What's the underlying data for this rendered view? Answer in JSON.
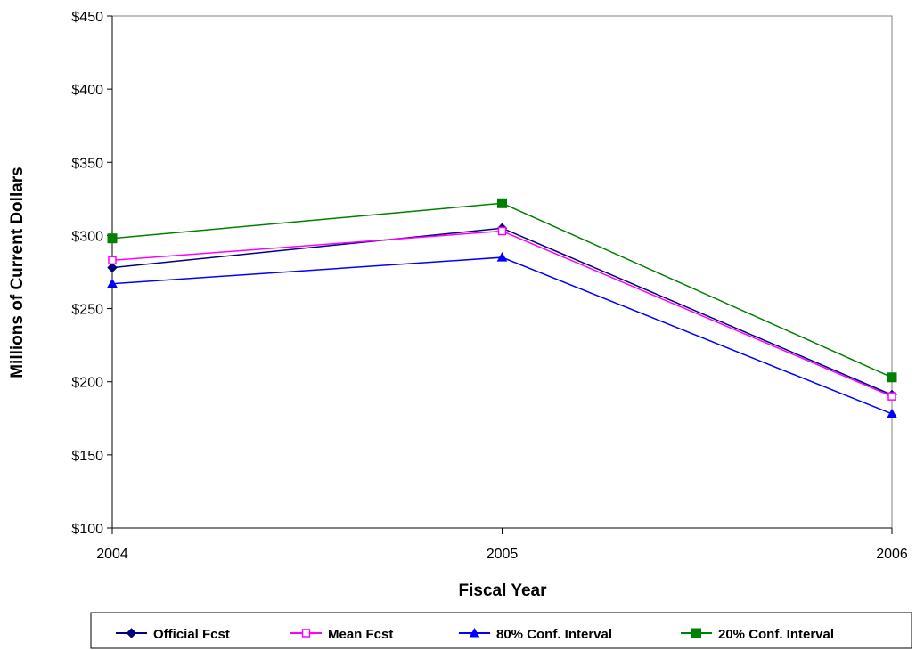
{
  "chart_data": {
    "type": "line",
    "title": "",
    "xlabel": "Fiscal Year",
    "ylabel": "Millions of Current Dollars",
    "x": [
      "2004",
      "2005",
      "2006"
    ],
    "ylim": [
      100,
      450
    ],
    "y_ticks": [
      "$100",
      "$150",
      "$200",
      "$250",
      "$300",
      "$350",
      "$400",
      "$450"
    ],
    "y_tick_values": [
      100,
      150,
      200,
      250,
      300,
      350,
      400,
      450
    ],
    "grid": false,
    "legend_position": "bottom",
    "series": [
      {
        "name": "Official Fcst",
        "values": [
          278,
          305,
          191
        ],
        "color": "#000080",
        "marker": "diamond"
      },
      {
        "name": "Mean Fcst",
        "values": [
          283,
          303,
          190
        ],
        "color": "#ff00ff",
        "marker": "square-open"
      },
      {
        "name": "80% Conf. Interval",
        "values": [
          267,
          285,
          178
        ],
        "color": "#0000ff",
        "marker": "triangle"
      },
      {
        "name": "20% Conf. Interval",
        "values": [
          298,
          322,
          203
        ],
        "color": "#008000",
        "marker": "square"
      }
    ]
  }
}
